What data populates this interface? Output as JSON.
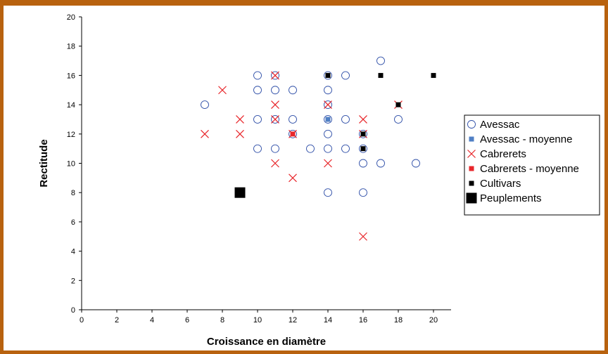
{
  "chart_data": {
    "type": "scatter",
    "title": "",
    "xlabel": "Croissance en diamètre",
    "ylabel": "Rectitude",
    "xlim": [
      0,
      21
    ],
    "ylim": [
      0,
      20
    ],
    "x_ticks": [
      0,
      2,
      4,
      6,
      8,
      10,
      12,
      14,
      16,
      18,
      20
    ],
    "y_ticks": [
      0,
      2,
      4,
      6,
      8,
      10,
      12,
      14,
      16,
      18,
      20
    ],
    "grid": false,
    "legend_position": "right",
    "series": [
      {
        "name": "Avessac",
        "marker": "open-circle",
        "color": "#2f4fa8",
        "points": [
          [
            7,
            14
          ],
          [
            10,
            16
          ],
          [
            10,
            15
          ],
          [
            10,
            13
          ],
          [
            10,
            11
          ],
          [
            11,
            16
          ],
          [
            11,
            15
          ],
          [
            11,
            13
          ],
          [
            11,
            11
          ],
          [
            12,
            15
          ],
          [
            12,
            13
          ],
          [
            12,
            12
          ],
          [
            13,
            11
          ],
          [
            14,
            16
          ],
          [
            14,
            15
          ],
          [
            14,
            14
          ],
          [
            14,
            13
          ],
          [
            14,
            12
          ],
          [
            14,
            11
          ],
          [
            14,
            8
          ],
          [
            15,
            16
          ],
          [
            15,
            13
          ],
          [
            15,
            11
          ],
          [
            16,
            12
          ],
          [
            16,
            11
          ],
          [
            16,
            10
          ],
          [
            16,
            8
          ],
          [
            17,
            17
          ],
          [
            17,
            10
          ],
          [
            18,
            13
          ],
          [
            19,
            10
          ]
        ]
      },
      {
        "name": "Avessac - moyenne",
        "marker": "filled-square",
        "color": "#4f7fc4",
        "points": [
          [
            14,
            13
          ]
        ]
      },
      {
        "name": "Cabrerets",
        "marker": "x",
        "color": "#e8262b",
        "points": [
          [
            7,
            12
          ],
          [
            8,
            15
          ],
          [
            9,
            13
          ],
          [
            9,
            12
          ],
          [
            11,
            16
          ],
          [
            11,
            14
          ],
          [
            11,
            13
          ],
          [
            11,
            10
          ],
          [
            12,
            12
          ],
          [
            12,
            9
          ],
          [
            14,
            14
          ],
          [
            14,
            10
          ],
          [
            16,
            13
          ],
          [
            16,
            12
          ],
          [
            16,
            5
          ],
          [
            18,
            14
          ]
        ]
      },
      {
        "name": "Cabrerets - moyenne",
        "marker": "filled-square",
        "color": "#e8262b",
        "points": [
          [
            12,
            12
          ]
        ]
      },
      {
        "name": "Cultivars",
        "marker": "filled-square",
        "color": "#000000",
        "points": [
          [
            14,
            16
          ],
          [
            16,
            12
          ],
          [
            16,
            11
          ],
          [
            17,
            16
          ],
          [
            18,
            14
          ],
          [
            20,
            16
          ]
        ]
      },
      {
        "name": "Peuplements",
        "marker": "large-filled-square",
        "color": "#000000",
        "points": [
          [
            9,
            8
          ]
        ]
      }
    ]
  },
  "colors": {
    "frame": "#b8620f",
    "axis": "#000000"
  }
}
